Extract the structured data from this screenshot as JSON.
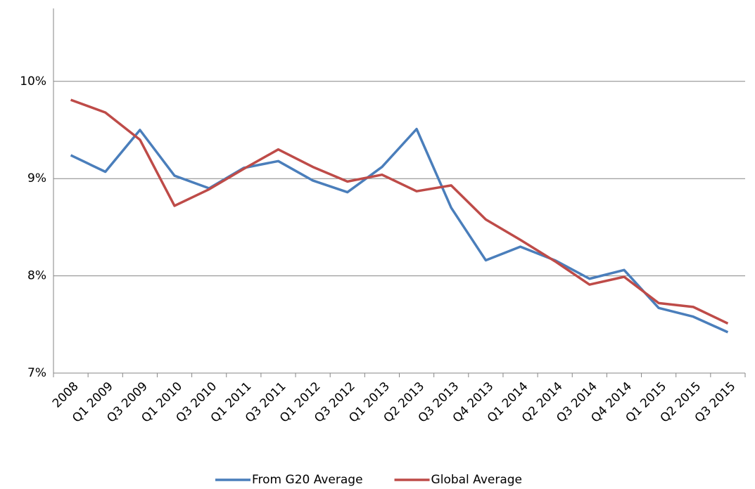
{
  "chart_data": {
    "type": "line",
    "categories": [
      "2008",
      "Q1 2009",
      "Q3 2009",
      "Q1 2010",
      "Q3 2010",
      "Q1 2011",
      "Q3 2011",
      "Q1 2012",
      "Q3 2012",
      "Q1 2013",
      "Q2 2013",
      "Q3 2013",
      "Q4 2013",
      "Q1 2014",
      "Q2 2014",
      "Q3 2014",
      "Q4 2014",
      "Q1 2015",
      "Q2 2015",
      "Q3 2015"
    ],
    "series": [
      {
        "name": "From G20 Average",
        "color": "#4a7ebb",
        "values": [
          9.24,
          9.07,
          9.5,
          9.03,
          8.9,
          9.11,
          9.18,
          8.98,
          8.86,
          9.12,
          9.51,
          8.7,
          8.16,
          8.3,
          8.16,
          7.97,
          8.06,
          7.67,
          7.58,
          7.42
        ]
      },
      {
        "name": "Global Average",
        "color": "#be4b48",
        "values": [
          9.81,
          9.68,
          9.4,
          8.72,
          8.89,
          9.1,
          9.3,
          9.12,
          8.97,
          9.04,
          8.87,
          8.93,
          8.58,
          8.37,
          8.15,
          7.91,
          7.99,
          7.72,
          7.68,
          7.51
        ]
      }
    ],
    "ylim": [
      7,
      10.75
    ],
    "yticks": [
      {
        "value": 7,
        "label": "7%"
      },
      {
        "value": 8,
        "label": "8%"
      },
      {
        "value": 9,
        "label": "9%"
      },
      {
        "value": 10,
        "label": "10%"
      }
    ],
    "grid": true,
    "legend": "bottom"
  }
}
